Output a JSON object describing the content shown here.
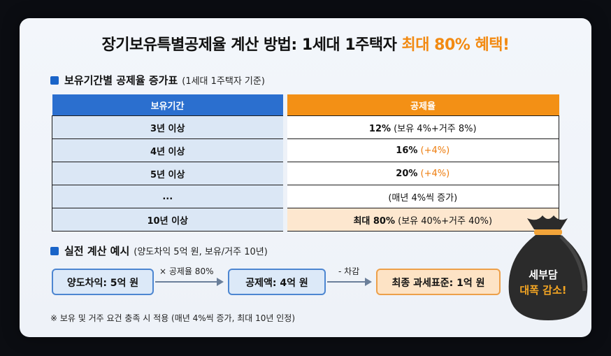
{
  "title": {
    "main": "장기보유특별공제율 계산 방법: 1세대 1주택자",
    "highlight": "최대 80% 혜택!"
  },
  "table_section": {
    "heading": "보유기간별 공제율 증가표",
    "subheading": "(1세대 1주택자 기준)",
    "headers": [
      "보유기간",
      "공제율"
    ],
    "rows": [
      {
        "period": "3년 이상",
        "rate_bold": "12%",
        "rate_rest": " (보유 4%+거주 8%)",
        "rate_orange": ""
      },
      {
        "period": "4년 이상",
        "rate_bold": "16%",
        "rate_rest": " ",
        "rate_orange": "(+4%)"
      },
      {
        "period": "5년 이상",
        "rate_bold": "20%",
        "rate_rest": " ",
        "rate_orange": "(+4%)"
      },
      {
        "period": "...",
        "rate_bold": "",
        "rate_rest": "(매년 4%씩 증가)",
        "rate_orange": ""
      },
      {
        "period": "10년 이상",
        "rate_bold": "최대 80%",
        "rate_rest": " (보유 40%+거주 40%)",
        "rate_orange": ""
      }
    ]
  },
  "example_section": {
    "heading": "실전 계산 예시",
    "subheading": "(양도차익 5억 원, 보유/거주 10년)",
    "step1": "양도차익: 5억 원",
    "arrow1": "× 공제율 80%",
    "step2": "공제액: 4억 원",
    "arrow2": "- 차감",
    "step3": "최종 과세표준: 1억 원"
  },
  "badge": {
    "line1": "세부담",
    "line2": "대폭 감소!"
  },
  "note": "※ 보유 및 거주 요건 충족 시 적용 (매년 4%씩 증가, 최대 10년 인정)",
  "colors": {
    "accent_orange": "#f28a12",
    "accent_blue": "#2b6fcf",
    "bag": "#2b2b2b"
  }
}
